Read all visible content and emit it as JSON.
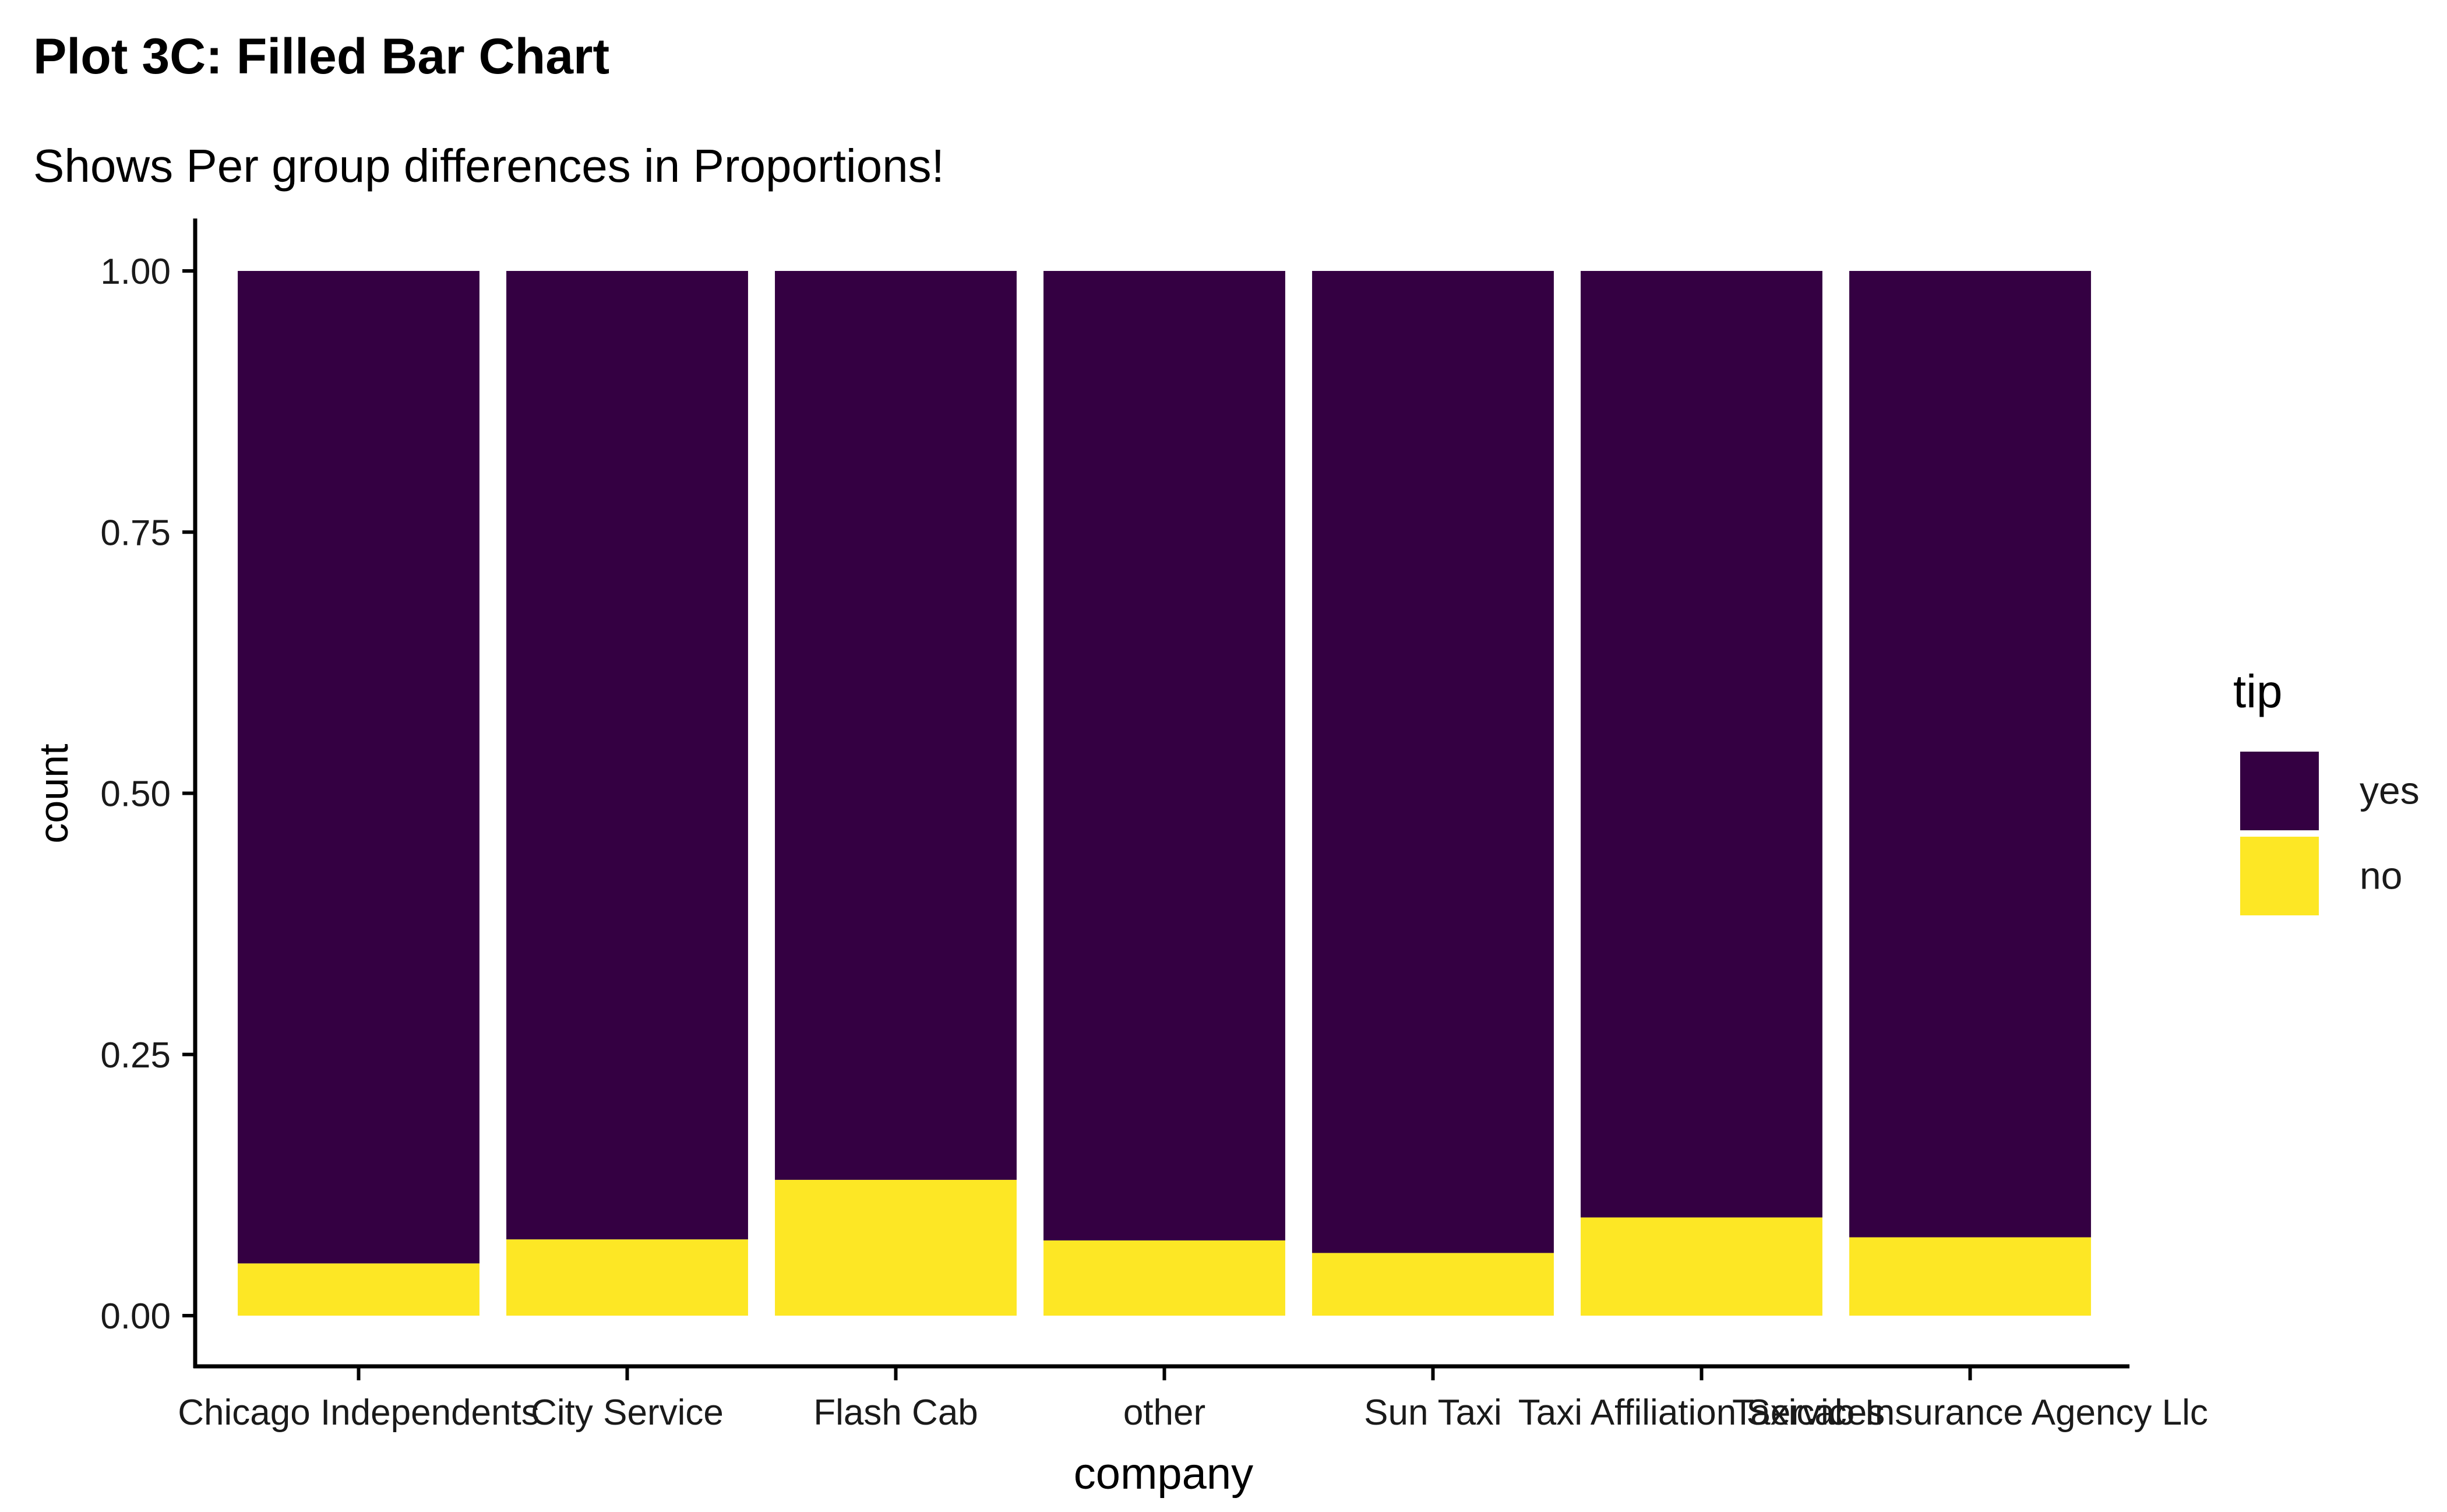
{
  "chart_data": {
    "type": "bar",
    "stacked": true,
    "position": "fill",
    "title": "Plot 3C: Filled Bar Chart",
    "subtitle": "Shows Per group differences in Proportions!",
    "xlabel": "company",
    "ylabel": "count",
    "ylim": [
      0,
      1
    ],
    "yticks": [
      "0.00",
      "0.25",
      "0.50",
      "0.75",
      "1.00"
    ],
    "ytick_values": [
      0,
      0.25,
      0.5,
      0.75,
      1
    ],
    "categories": [
      "Chicago Independents",
      "City Service",
      "Flash Cab",
      "other",
      "Sun Taxi",
      "Taxi Affiliation Services",
      "Taxicab Insurance Agency Llc"
    ],
    "series": [
      {
        "name": "no",
        "color": "#FDE725",
        "values": [
          0.05,
          0.073,
          0.13,
          0.072,
          0.06,
          0.094,
          0.075
        ]
      },
      {
        "name": "yes",
        "color": "#340042",
        "values": [
          0.95,
          0.927,
          0.87,
          0.928,
          0.94,
          0.906,
          0.925
        ]
      }
    ],
    "legend": {
      "title": "tip",
      "placement": "right",
      "entries": [
        {
          "label": "yes",
          "color": "#340042"
        },
        {
          "label": "no",
          "color": "#FDE725"
        }
      ]
    },
    "grid": false
  }
}
